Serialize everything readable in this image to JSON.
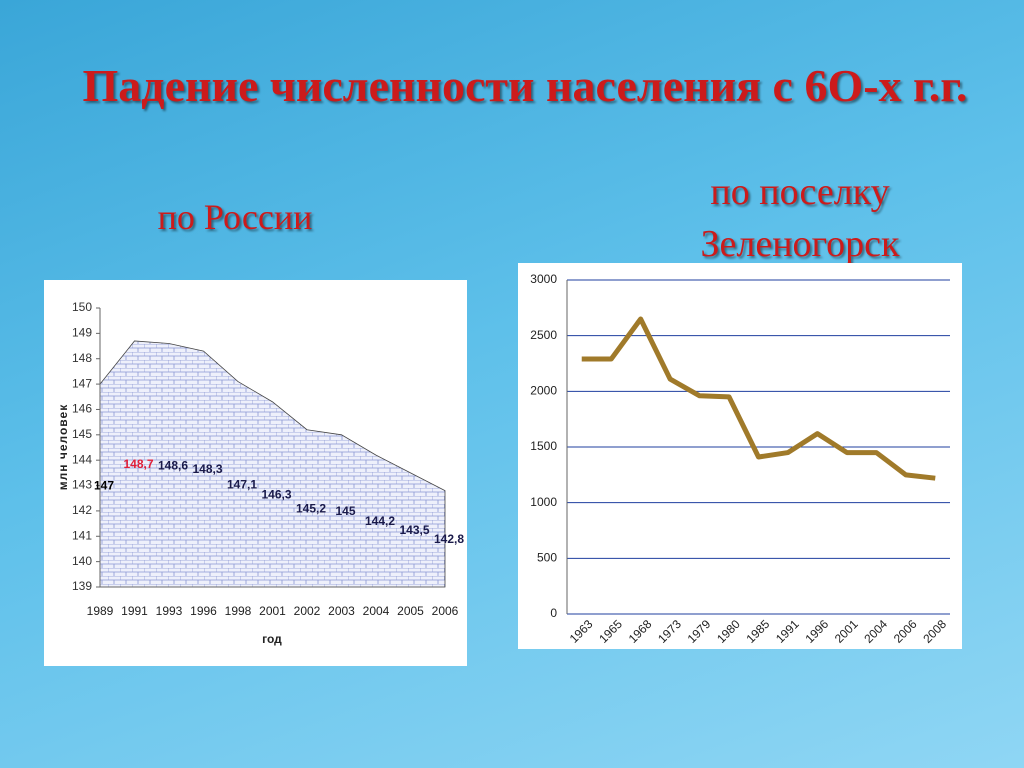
{
  "title": "Падение численности населения с 6О-х г.г.",
  "chart_data": [
    {
      "type": "area",
      "title": "по России",
      "y_label": "млн человек",
      "x_label": "год",
      "categories": [
        "1989",
        "1991",
        "1993",
        "1996",
        "1998",
        "2001",
        "2002",
        "2003",
        "2004",
        "2005",
        "2006"
      ],
      "values": [
        147,
        148.7,
        148.6,
        148.3,
        147.1,
        146.3,
        145.2,
        145,
        144.2,
        143.5,
        142.8
      ],
      "value_labels": [
        "147",
        "148,7",
        "148,6",
        "148,3",
        "147,1",
        "146,3",
        "145,2",
        "145",
        "144,2",
        "143,5",
        "142,8"
      ],
      "color": "#7f8fd0",
      "ylim": [
        139,
        150
      ],
      "yticks": [
        139,
        140,
        141,
        142,
        143,
        144,
        145,
        146,
        147,
        148,
        149,
        150
      ],
      "grid": false
    },
    {
      "type": "line",
      "title": "по поселку Зеленогорск",
      "categories": [
        "1963",
        "1965",
        "1968",
        "1973",
        "1979",
        "1980",
        "1985",
        "1991",
        "1996",
        "2001",
        "2004",
        "2006",
        "2008"
      ],
      "values": [
        2290,
        2290,
        2650,
        2110,
        1960,
        1950,
        1410,
        1450,
        1620,
        1450,
        1450,
        1250,
        1220
      ],
      "color": "#a07a2a",
      "ylim": [
        0,
        3000
      ],
      "yticks": [
        0,
        500,
        1000,
        1500,
        2000,
        2500,
        3000
      ],
      "grid": true
    }
  ]
}
